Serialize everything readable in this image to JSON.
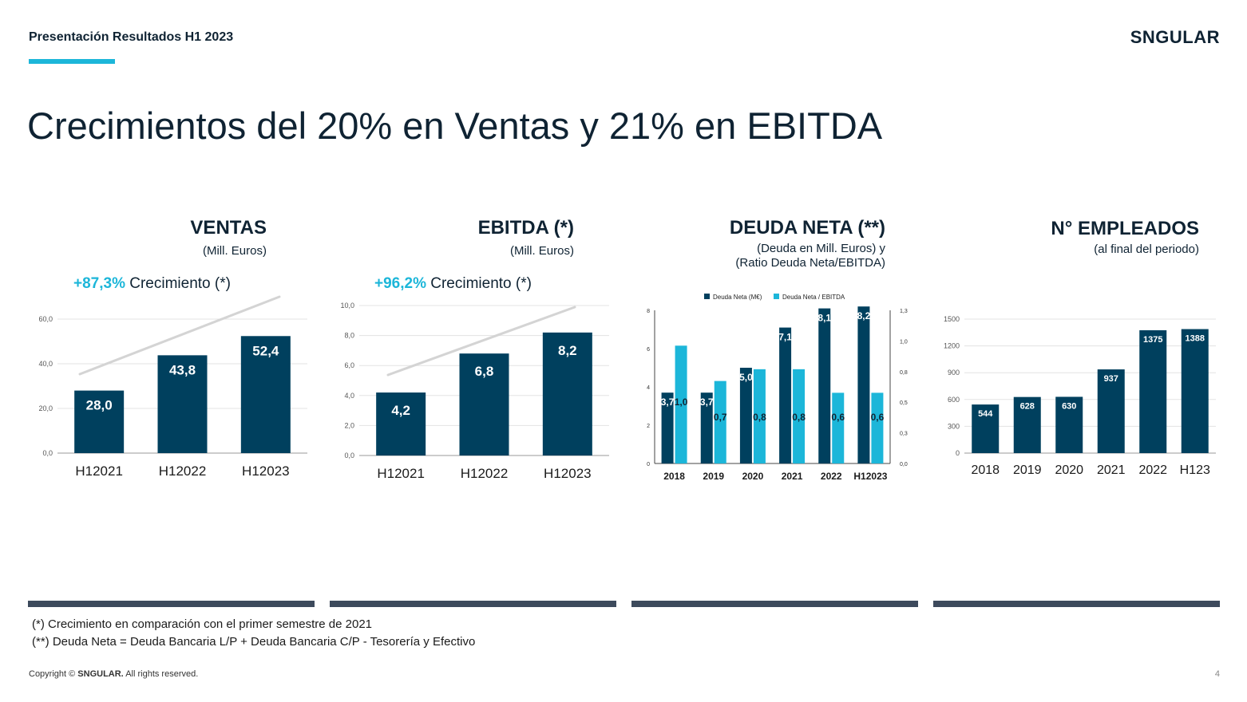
{
  "header": {
    "title": "Presentación Resultados H1 2023",
    "logo": "SNGULAR",
    "headline": "Crecimientos del  20% en Ventas y 21% en EBITDA"
  },
  "panels": {
    "ventas": {
      "title": "VENTAS",
      "subtitle": "(Mill. Euros)",
      "growth_pct": "+87,3%",
      "growth_text": " Crecimiento (*)"
    },
    "ebitda": {
      "title": "EBITDA (*)",
      "subtitle": "(Mill. Euros)",
      "growth_pct": "+96,2%",
      "growth_text": " Crecimiento (*)"
    },
    "deuda": {
      "title": "DEUDA NETA (**)",
      "subtitle1": "(Deuda en Mill. Euros) y",
      "subtitle2": "(Ratio Deuda Neta/EBITDA)"
    },
    "empleados": {
      "title": "N° EMPLEADOS",
      "subtitle": "(al final del periodo)"
    }
  },
  "colors": {
    "dark": "#00405e",
    "accent": "#1cb6d9",
    "separator": "#3d4a5c",
    "trend": "#d4d4d4"
  },
  "chart_data": [
    {
      "id": "ventas",
      "type": "bar",
      "categories": [
        "H12021",
        "H12022",
        "H12023"
      ],
      "values": [
        28.0,
        43.8,
        52.4
      ],
      "data_labels": [
        "28,0",
        "43,8",
        "52,4"
      ],
      "ylim": [
        0,
        60
      ],
      "yticks": [
        "0,0",
        "20,0",
        "40,0",
        "60,0"
      ],
      "trend_line": true,
      "grid": true
    },
    {
      "id": "ebitda",
      "type": "bar",
      "categories": [
        "H12021",
        "H12022",
        "H12023"
      ],
      "values": [
        4.2,
        6.8,
        8.2
      ],
      "data_labels": [
        "4,2",
        "6,8",
        "8,2"
      ],
      "ylim": [
        0,
        10
      ],
      "yticks": [
        "0,0",
        "2,0",
        "4,0",
        "6,0",
        "8,0",
        "10,0"
      ],
      "trend_line": true,
      "grid": true
    },
    {
      "id": "deuda",
      "type": "bar",
      "categories": [
        "2018",
        "2019",
        "2020",
        "2021",
        "2022",
        "H12023"
      ],
      "series": [
        {
          "name": "Deuda Neta (M€)",
          "values": [
            3.7,
            3.7,
            5.0,
            7.1,
            8.1,
            8.2
          ],
          "labels": [
            "3,7",
            "3,7",
            "5,0",
            "7,1",
            "8,1",
            "8,2"
          ],
          "axis": "left"
        },
        {
          "name": "Deuda Neta / EBITDA",
          "values": [
            1.0,
            0.7,
            0.8,
            0.8,
            0.6,
            0.6
          ],
          "labels": [
            "1,0",
            "0,7",
            "0,8",
            "0,8",
            "0,6",
            "0,6"
          ],
          "axis": "right"
        }
      ],
      "ylim": [
        0,
        8
      ],
      "yticks": [
        "0",
        "2",
        "4",
        "6",
        "8"
      ],
      "y2lim": [
        0,
        1.3
      ],
      "y2ticks": [
        "0,0",
        "0,3",
        "0,5",
        "0,8",
        "1,0",
        "1,3"
      ],
      "legend": "top-center",
      "grid": false
    },
    {
      "id": "empleados",
      "type": "bar",
      "categories": [
        "2018",
        "2019",
        "2020",
        "2021",
        "2022",
        "H123"
      ],
      "values": [
        544,
        628,
        630,
        937,
        1375,
        1388
      ],
      "data_labels": [
        "544",
        "628",
        "630",
        "937",
        "1375",
        "1388"
      ],
      "ylim": [
        0,
        1500
      ],
      "yticks": [
        "0",
        "300",
        "600",
        "900",
        "1200",
        "1500"
      ],
      "grid": true
    }
  ],
  "footnotes": [
    "(*) Crecimiento en comparación con el primer semestre de 2021",
    "(**) Deuda Neta = Deuda Bancaria L/P + Deuda Bancaria C/P - Tesorería y Efectivo"
  ],
  "footer": {
    "copyright_prefix": "Copyright © ",
    "copyright_brand": "SNGULAR.",
    "copyright_suffix": " All rights reserved.",
    "page_number": "4"
  }
}
